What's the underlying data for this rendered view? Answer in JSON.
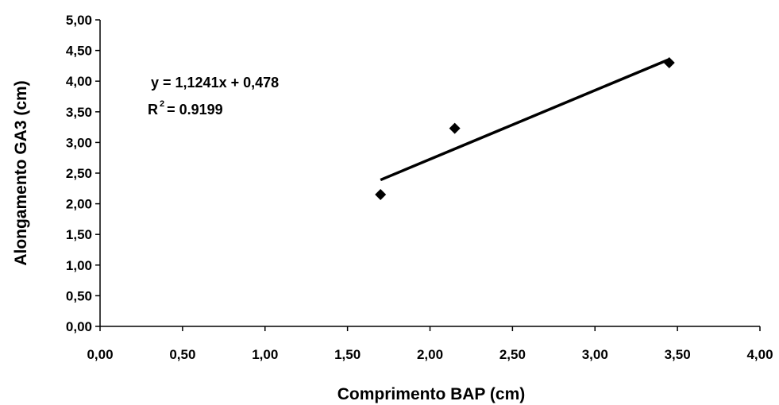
{
  "chart_data": {
    "type": "scatter",
    "xlabel": "Comprimento BAP (cm)",
    "ylabel": "Alongamento GA3 (cm)",
    "xlim": [
      0,
      4
    ],
    "ylim": [
      0,
      5
    ],
    "x_ticks": [
      "0,00",
      "0,50",
      "1,00",
      "1,50",
      "2,00",
      "2,50",
      "3,00",
      "3,50",
      "4,00"
    ],
    "y_ticks": [
      "0,00",
      "0,50",
      "1,00",
      "1,50",
      "2,00",
      "2,50",
      "3,00",
      "3,50",
      "4,00",
      "4,50",
      "5,00"
    ],
    "grid": false,
    "points": [
      {
        "x": 1.7,
        "y": 2.15
      },
      {
        "x": 2.15,
        "y": 3.23
      },
      {
        "x": 3.45,
        "y": 4.3
      }
    ],
    "trendline": {
      "slope": 1.1241,
      "intercept": 0.478,
      "x_range": [
        1.7,
        3.45
      ]
    },
    "annotations": {
      "equation": "y = 1,1241x + 0,478",
      "r2_prefix": "R",
      "r2_sup": "2",
      "r2_value": "= 0.9199"
    },
    "marker_color": "#000000"
  }
}
